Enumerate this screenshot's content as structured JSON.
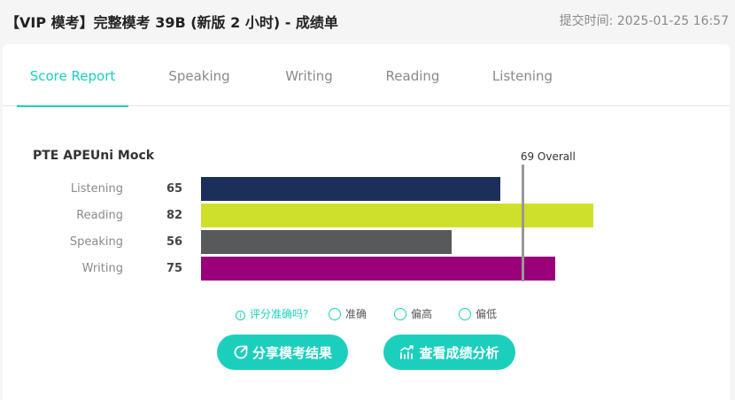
{
  "header": {
    "title": "【VIP 模考】完整模考 39B (新版 2 小时) - 成绩单",
    "submit_time": "提交时间: 2025-01-25 16:57"
  },
  "tabs": [
    {
      "label": "Score Report",
      "active": true
    },
    {
      "label": "Speaking",
      "active": false
    },
    {
      "label": "Writing",
      "active": false
    },
    {
      "label": "Reading",
      "active": false
    },
    {
      "label": "Listening",
      "active": false
    }
  ],
  "report": {
    "mock_title": "PTE APEUni Mock",
    "overall_label": "69 Overall"
  },
  "chart_data": {
    "type": "bar",
    "orientation": "horizontal",
    "categories": [
      "Listening",
      "Reading",
      "Speaking",
      "Writing"
    ],
    "values": [
      65,
      82,
      56,
      75
    ],
    "colors": [
      "#1c2e5a",
      "#cfe02a",
      "#58595b",
      "#990079"
    ],
    "overall": 69,
    "xlim": [
      10,
      90
    ]
  },
  "feedback": {
    "question": "评分准确吗?",
    "options": [
      "准确",
      "偏高",
      "偏低"
    ]
  },
  "buttons": {
    "share": "分享模考结果",
    "analysis": "查看成绩分析"
  },
  "colors": {
    "accent": "#1ccfbc"
  }
}
